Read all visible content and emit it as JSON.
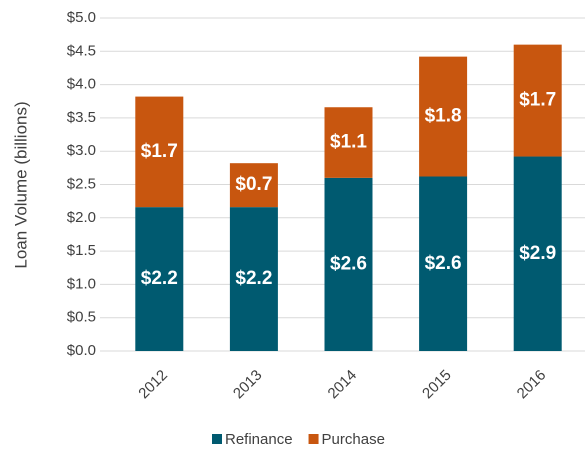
{
  "chart_data": {
    "type": "stacked_bar",
    "y_label": "Loan Volume (billions)",
    "categories": [
      "2012",
      "2013",
      "2014",
      "2015",
      "2016"
    ],
    "series": [
      {
        "name": "Refinance",
        "color": "#005a70",
        "values": [
          2.16,
          2.16,
          2.6,
          2.62,
          2.92
        ],
        "value_labels": [
          "$2.2",
          "$2.2",
          "$2.6",
          "$2.6",
          "$2.9"
        ]
      },
      {
        "name": "Purchase",
        "color": "#c8560f",
        "values": [
          1.66,
          0.66,
          1.06,
          1.8,
          1.68
        ],
        "value_labels": [
          "$1.7",
          "$0.7",
          "$1.1",
          "$1.8",
          "$1.7"
        ]
      }
    ],
    "ylim": [
      0,
      5
    ],
    "yticks": [
      {
        "value": 0,
        "label": "$0.0"
      },
      {
        "value": 0.5,
        "label": "$0.5"
      },
      {
        "value": 1,
        "label": "$1.0"
      },
      {
        "value": 1.5,
        "label": "$1.5"
      },
      {
        "value": 2,
        "label": "$2.0"
      },
      {
        "value": 2.5,
        "label": "$2.5"
      },
      {
        "value": 3,
        "label": "$3.0"
      },
      {
        "value": 3.5,
        "label": "$3.5"
      },
      {
        "value": 4,
        "label": "$4.0"
      },
      {
        "value": 4.5,
        "label": "$4.5"
      },
      {
        "value": 5,
        "label": "$5.0"
      }
    ],
    "grid": true,
    "legend": "bottom"
  }
}
